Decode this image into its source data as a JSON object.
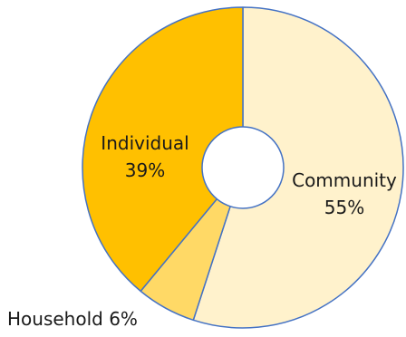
{
  "chart_data": {
    "type": "pie",
    "variant": "donut",
    "categories": [
      "Community",
      "Household",
      "Individual"
    ],
    "values": [
      55,
      6,
      39
    ],
    "unit": "%",
    "labels": [
      {
        "name": "Community",
        "value": "55%"
      },
      {
        "name": "Household",
        "value": "6%"
      },
      {
        "name": "Individual",
        "value": "39%"
      }
    ],
    "label_text": {
      "household_inline": "Household 6%"
    },
    "colors": [
      "#FFF2CC",
      "#FFD966",
      "#FFC000"
    ],
    "border_color": "#4472C4",
    "legend": "none",
    "title": ""
  }
}
